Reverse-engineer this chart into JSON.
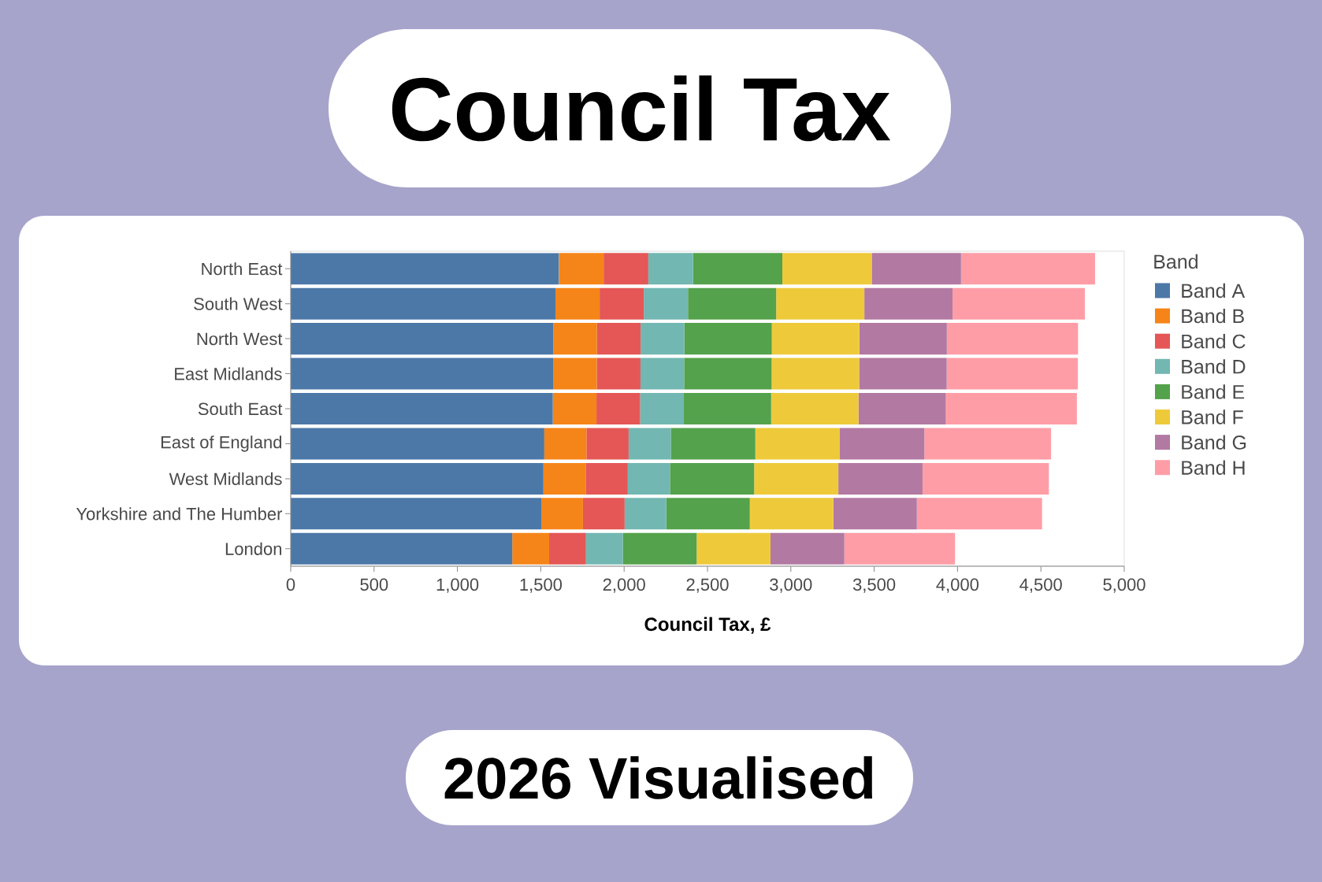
{
  "chart_data": {
    "type": "bar",
    "orientation": "horizontal",
    "stacked": true,
    "title": "Council Tax",
    "subtitle": "2026 Visualised",
    "xlabel": "Council Tax, £",
    "legend_title": "Band",
    "legend": "right",
    "categories": [
      "North East",
      "South West",
      "North West",
      "East Midlands",
      "South East",
      "East of England",
      "West Midlands",
      "Yorkshire and The Humber",
      "London"
    ],
    "xlim": [
      0,
      5000
    ],
    "xticks": [
      0,
      500,
      {
        "value": 1000,
        "label": "1,000"
      },
      {
        "value": 1500,
        "label": "1,500"
      },
      {
        "value": 2000,
        "label": "2,000"
      },
      {
        "value": 2500,
        "label": "2,500"
      },
      {
        "value": 3000,
        "label": "3,000"
      },
      {
        "value": 3500,
        "label": "3,500"
      },
      {
        "value": 4000,
        "label": "4,000"
      },
      {
        "value": 4500,
        "label": "4,500"
      },
      {
        "value": 5000,
        "label": "5,000"
      }
    ],
    "series": [
      {
        "name": "Band A",
        "color": "#4c78a8",
        "values": [
          1609,
          1588,
          1575,
          1574,
          1572,
          1521,
          1516,
          1503,
          1329
        ]
      },
      {
        "name": "Band B",
        "color": "#f58518",
        "values": [
          268,
          265,
          262,
          262,
          262,
          253,
          253,
          250,
          221
        ]
      },
      {
        "name": "Band C",
        "color": "#e45756",
        "values": [
          268,
          265,
          262,
          262,
          262,
          253,
          253,
          250,
          221
        ]
      },
      {
        "name": "Band D",
        "color": "#72b7b2",
        "values": [
          268,
          265,
          262,
          262,
          262,
          253,
          253,
          250,
          221
        ]
      },
      {
        "name": "Band E",
        "color": "#54a24b",
        "values": [
          536,
          529,
          525,
          525,
          524,
          507,
          505,
          501,
          443
        ]
      },
      {
        "name": "Band F",
        "color": "#eeca3b",
        "values": [
          536,
          529,
          525,
          525,
          524,
          507,
          505,
          501,
          443
        ]
      },
      {
        "name": "Band G",
        "color": "#b279a2",
        "values": [
          536,
          529,
          525,
          525,
          524,
          507,
          505,
          501,
          443
        ]
      },
      {
        "name": "Band H",
        "color": "#ff9da6",
        "values": [
          804,
          794,
          787,
          787,
          786,
          760,
          758,
          751,
          664
        ]
      }
    ]
  }
}
